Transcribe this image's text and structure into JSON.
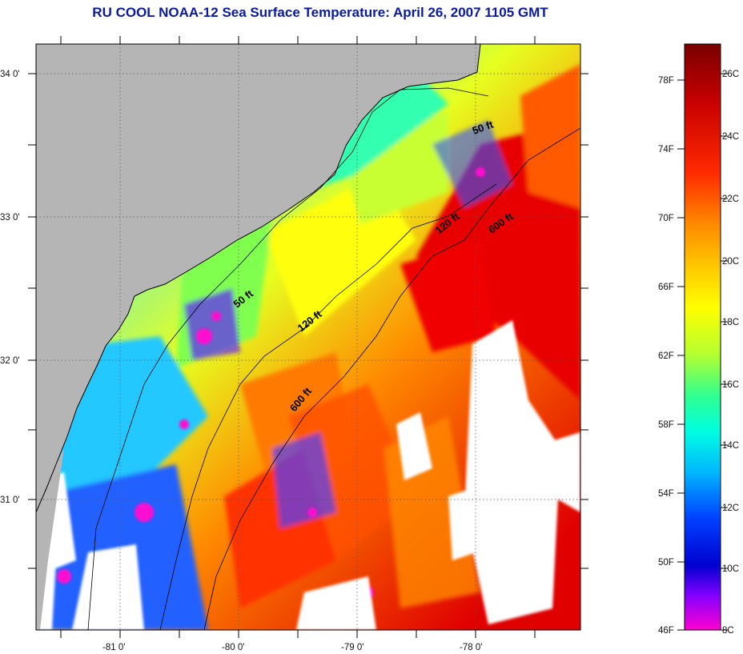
{
  "title": "RU COOL  NOAA-12  Sea Surface Temperature:  April 26, 2007 1105 GMT",
  "map": {
    "lon_ticks": [
      "-81 0'",
      "-80 0'",
      "-79 0'",
      "-78 0'"
    ],
    "lat_ticks": [
      "34 0'",
      "33 0'",
      "32 0'",
      "31 0'"
    ],
    "isobath_labels": {
      "shelf50_north": "50 ft",
      "shelf50_south": "50 ft",
      "shelf120_north": "120 ft",
      "shelf120_south": "120 ft",
      "shelf600_north": "600 ft",
      "shelf600_south": "600 ft"
    },
    "colors": {
      "land": "#b5b5b5",
      "no_data": "#ffffff",
      "grid": "#555555"
    }
  },
  "colorbar": {
    "fahrenheit_ticks": [
      "78F",
      "74F",
      "70F",
      "66F",
      "62F",
      "58F",
      "54F",
      "50F",
      "46F"
    ],
    "celsius_ticks": [
      "26C",
      "24C",
      "22C",
      "20C",
      "18C",
      "16C",
      "14C",
      "12C",
      "10C",
      "8C"
    ],
    "gradient_colors": [
      "#7a0000",
      "#c80000",
      "#ff2a00",
      "#ff8c00",
      "#ffd000",
      "#ffff00",
      "#b4ff30",
      "#30ff90",
      "#00ffe0",
      "#00b8ff",
      "#0040ff",
      "#0000d0",
      "#8000ff",
      "#ff00d0"
    ]
  }
}
